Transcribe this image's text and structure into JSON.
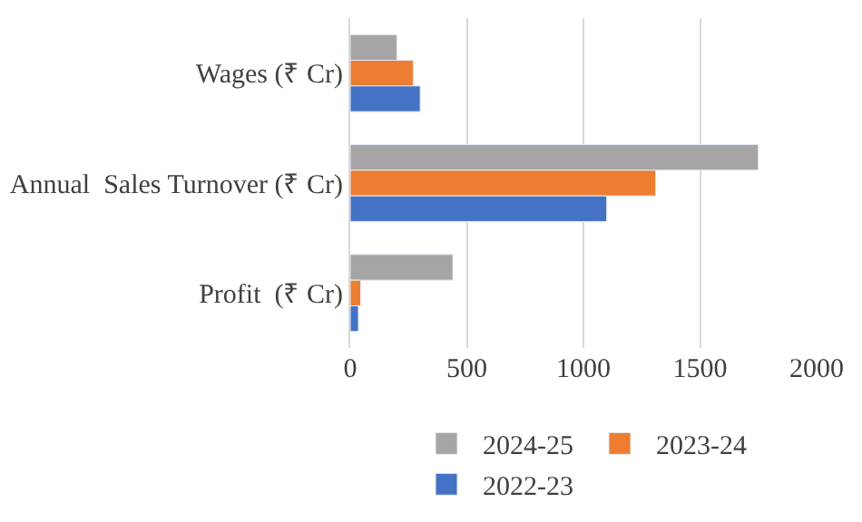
{
  "chart_data": {
    "type": "bar",
    "orientation": "horizontal",
    "categories": [
      "Wages (₹ Cr)",
      "Annual  Sales Turnover (₹ Cr)",
      "Profit  (₹ Cr)"
    ],
    "series": [
      {
        "name": "2024-25",
        "color": "#a5a5a5",
        "values": [
          200,
          1750,
          440
        ]
      },
      {
        "name": "2023-24",
        "color": "#ed7d31",
        "values": [
          270,
          1310,
          45
        ]
      },
      {
        "name": "2022-23",
        "color": "#4472c4",
        "values": [
          300,
          1100,
          35
        ]
      }
    ],
    "xlim": [
      0,
      2000
    ],
    "xticks": [
      0,
      500,
      1000,
      1500,
      2000
    ],
    "grid": "x",
    "legend": "bottom"
  }
}
